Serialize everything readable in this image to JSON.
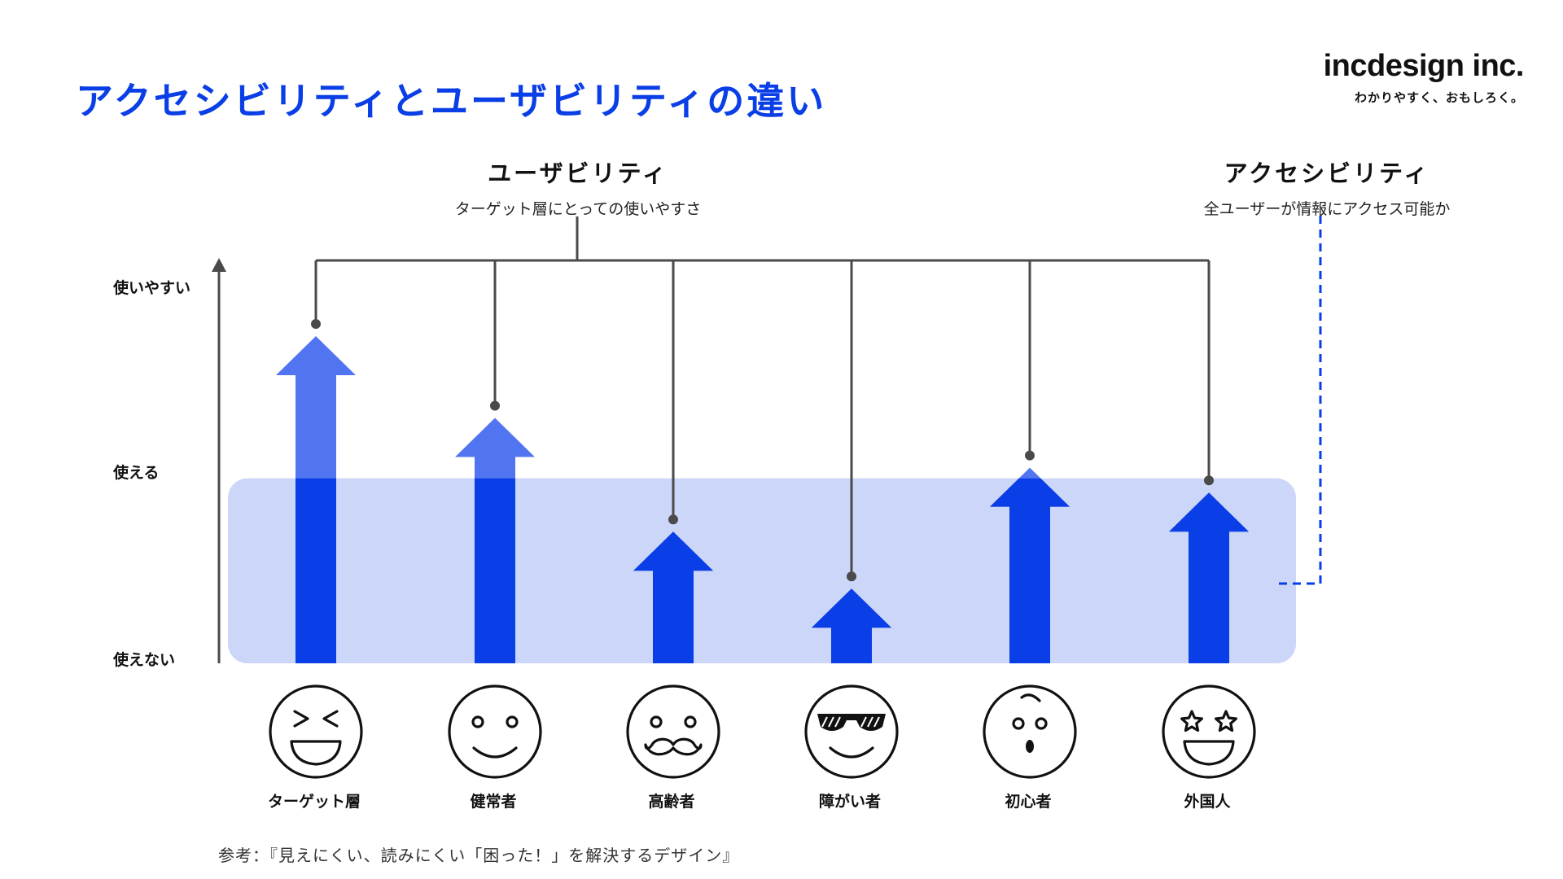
{
  "title": "アクセシビリティとユーザビリティの違い",
  "logo": {
    "name": "incdesign inc.",
    "tagline": "わかりやすく、おもしろく。"
  },
  "usability": {
    "heading": "ユーザビリティ",
    "subheading": "ターゲット層にとっての使いやすさ"
  },
  "accessibility": {
    "heading": "アクセシビリティ",
    "subheading": "全ユーザーが情報にアクセス可能か"
  },
  "y_axis": {
    "levels": [
      "使いやすい",
      "使える",
      "使えない"
    ]
  },
  "personas": [
    {
      "label": "ターゲット層",
      "icon": "grinning-squint-face-icon",
      "usability": 0.92
    },
    {
      "label": "健常者",
      "icon": "smiling-face-icon",
      "usability": 0.69
    },
    {
      "label": "高齢者",
      "icon": "mustache-face-icon",
      "usability": 0.37
    },
    {
      "label": "障がい者",
      "icon": "sunglasses-face-icon",
      "usability": 0.21
    },
    {
      "label": "初心者",
      "icon": "surprised-face-icon",
      "usability": 0.55
    },
    {
      "label": "外国人",
      "icon": "star-eyes-face-icon",
      "usability": 0.48
    }
  ],
  "accessible_band": {
    "from": 0.0,
    "to": 0.52
  },
  "colors": {
    "brand_blue": "#0a3ee6",
    "arrow_light": "#5175f0",
    "band": "#cbd6f8",
    "connector": "#4a4a4a",
    "dashed": "#0a3ee6"
  },
  "reference": "参考：『見えにくい、読みにくい「困った！」を解決するデザイン』"
}
